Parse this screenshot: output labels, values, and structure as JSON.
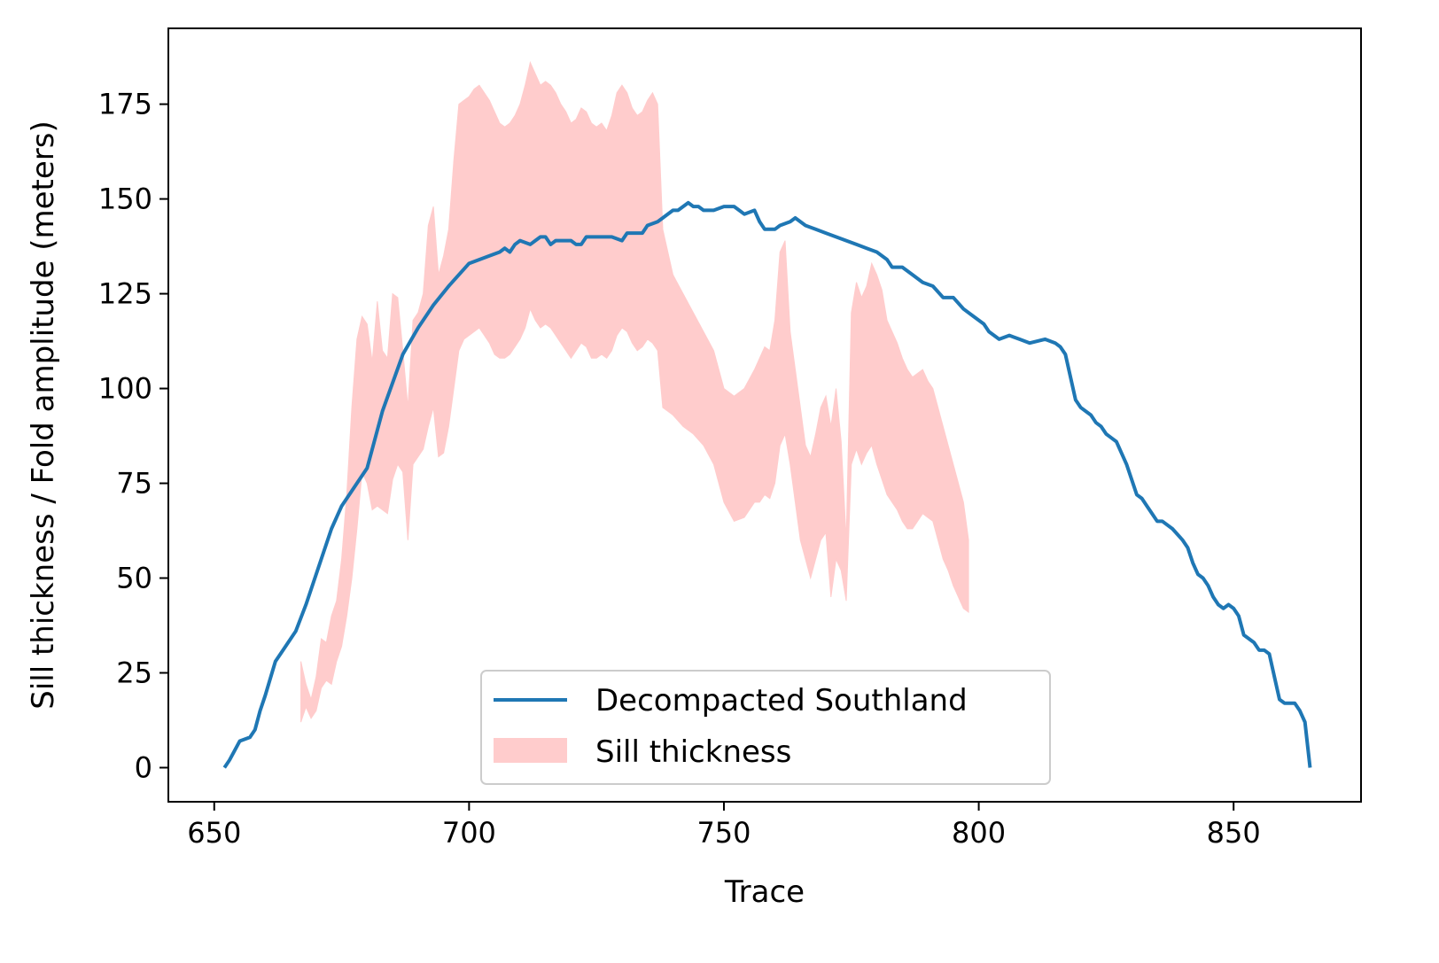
{
  "chart_data": {
    "type": "line",
    "xlabel": "Trace",
    "ylabel": "Sill thickness / Fold amplitude (meters)",
    "xlim": [
      641,
      875
    ],
    "ylim": [
      -9,
      195
    ],
    "xticks": [
      650,
      700,
      750,
      800,
      850
    ],
    "yticks": [
      0,
      25,
      50,
      75,
      100,
      125,
      150,
      175
    ],
    "grid": false,
    "legend_position": "lower-center",
    "line_series": {
      "name": "Decompacted Southland",
      "color": "#1f77b4",
      "points": [
        [
          652,
          0
        ],
        [
          653,
          2
        ],
        [
          655,
          7
        ],
        [
          657,
          8
        ],
        [
          658,
          10
        ],
        [
          659,
          15
        ],
        [
          660,
          19
        ],
        [
          662,
          28
        ],
        [
          663,
          30
        ],
        [
          665,
          34
        ],
        [
          666,
          36
        ],
        [
          668,
          43
        ],
        [
          671,
          55
        ],
        [
          673,
          63
        ],
        [
          675,
          69
        ],
        [
          678,
          75
        ],
        [
          680,
          79
        ],
        [
          683,
          94
        ],
        [
          687,
          109
        ],
        [
          690,
          116
        ],
        [
          693,
          122
        ],
        [
          696,
          127
        ],
        [
          700,
          133
        ],
        [
          704,
          135
        ],
        [
          706,
          136
        ],
        [
          707,
          137
        ],
        [
          708,
          136
        ],
        [
          709,
          138
        ],
        [
          710,
          139
        ],
        [
          712,
          138
        ],
        [
          713,
          139
        ],
        [
          714,
          140
        ],
        [
          715,
          140
        ],
        [
          716,
          138
        ],
        [
          717,
          139
        ],
        [
          718,
          139
        ],
        [
          719,
          139
        ],
        [
          720,
          139
        ],
        [
          721,
          138
        ],
        [
          722,
          138
        ],
        [
          723,
          140
        ],
        [
          725,
          140
        ],
        [
          728,
          140
        ],
        [
          730,
          139
        ],
        [
          731,
          141
        ],
        [
          732,
          141
        ],
        [
          734,
          141
        ],
        [
          735,
          143
        ],
        [
          737,
          144
        ],
        [
          738,
          145
        ],
        [
          740,
          147
        ],
        [
          741,
          147
        ],
        [
          742,
          148
        ],
        [
          743,
          149
        ],
        [
          744,
          148
        ],
        [
          745,
          148
        ],
        [
          746,
          147
        ],
        [
          748,
          147
        ],
        [
          750,
          148
        ],
        [
          752,
          148
        ],
        [
          753,
          147
        ],
        [
          754,
          146
        ],
        [
          756,
          147
        ],
        [
          757,
          144
        ],
        [
          758,
          142
        ],
        [
          760,
          142
        ],
        [
          761,
          143
        ],
        [
          763,
          144
        ],
        [
          764,
          145
        ],
        [
          766,
          143
        ],
        [
          768,
          142
        ],
        [
          770,
          141
        ],
        [
          772,
          140
        ],
        [
          774,
          139
        ],
        [
          776,
          138
        ],
        [
          778,
          137
        ],
        [
          780,
          136
        ],
        [
          781,
          135
        ],
        [
          782,
          134
        ],
        [
          783,
          132
        ],
        [
          785,
          132
        ],
        [
          787,
          130
        ],
        [
          789,
          128
        ],
        [
          791,
          127
        ],
        [
          793,
          124
        ],
        [
          795,
          124
        ],
        [
          797,
          121
        ],
        [
          799,
          119
        ],
        [
          801,
          117
        ],
        [
          802,
          115
        ],
        [
          804,
          113
        ],
        [
          806,
          114
        ],
        [
          808,
          113
        ],
        [
          810,
          112
        ],
        [
          813,
          113
        ],
        [
          815,
          112
        ],
        [
          816,
          111
        ],
        [
          817,
          109
        ],
        [
          818,
          103
        ],
        [
          819,
          97
        ],
        [
          820,
          95
        ],
        [
          821,
          94
        ],
        [
          822,
          93
        ],
        [
          823,
          91
        ],
        [
          824,
          90
        ],
        [
          825,
          88
        ],
        [
          826,
          87
        ],
        [
          827,
          86
        ],
        [
          828,
          83
        ],
        [
          829,
          80
        ],
        [
          830,
          76
        ],
        [
          831,
          72
        ],
        [
          832,
          71
        ],
        [
          833,
          69
        ],
        [
          834,
          67
        ],
        [
          835,
          65
        ],
        [
          836,
          65
        ],
        [
          838,
          63
        ],
        [
          840,
          60
        ],
        [
          841,
          58
        ],
        [
          842,
          54
        ],
        [
          843,
          51
        ],
        [
          844,
          50
        ],
        [
          845,
          48
        ],
        [
          846,
          45
        ],
        [
          847,
          43
        ],
        [
          848,
          42
        ],
        [
          849,
          43
        ],
        [
          850,
          42
        ],
        [
          851,
          40
        ],
        [
          852,
          35
        ],
        [
          853,
          34
        ],
        [
          854,
          33
        ],
        [
          855,
          31
        ],
        [
          856,
          31
        ],
        [
          857,
          30
        ],
        [
          858,
          24
        ],
        [
          859,
          18
        ],
        [
          860,
          17
        ],
        [
          861,
          17
        ],
        [
          862,
          17
        ],
        [
          863,
          15
        ],
        [
          864,
          12
        ],
        [
          865,
          0
        ]
      ]
    },
    "band_series": {
      "name": "Sill thickness",
      "color": "#ffcccc",
      "points": [
        [
          667,
          28,
          12
        ],
        [
          668,
          22,
          16
        ],
        [
          669,
          18,
          13
        ],
        [
          670,
          24,
          15
        ],
        [
          671,
          34,
          21
        ],
        [
          672,
          33,
          23
        ],
        [
          673,
          40,
          22
        ],
        [
          674,
          44,
          28
        ],
        [
          675,
          55,
          32
        ],
        [
          676,
          72,
          40
        ],
        [
          677,
          95,
          50
        ],
        [
          678,
          113,
          63
        ],
        [
          679,
          119,
          78
        ],
        [
          680,
          117,
          75
        ],
        [
          681,
          107,
          68
        ],
        [
          682,
          123,
          69
        ],
        [
          683,
          110,
          68
        ],
        [
          684,
          108,
          67
        ],
        [
          685,
          125,
          76
        ],
        [
          686,
          124,
          80
        ],
        [
          687,
          110,
          78
        ],
        [
          688,
          95,
          60
        ],
        [
          689,
          118,
          80
        ],
        [
          690,
          120,
          82
        ],
        [
          691,
          125,
          84
        ],
        [
          692,
          143,
          90
        ],
        [
          693,
          148,
          95
        ],
        [
          694,
          130,
          82
        ],
        [
          695,
          135,
          83
        ],
        [
          696,
          142,
          90
        ],
        [
          697,
          160,
          100
        ],
        [
          698,
          175,
          110
        ],
        [
          699,
          176,
          113
        ],
        [
          700,
          177,
          114
        ],
        [
          701,
          179,
          115
        ],
        [
          702,
          180,
          116
        ],
        [
          703,
          178,
          114
        ],
        [
          704,
          176,
          112
        ],
        [
          705,
          173,
          109
        ],
        [
          706,
          170,
          108
        ],
        [
          707,
          169,
          108
        ],
        [
          708,
          170,
          109
        ],
        [
          709,
          172,
          111
        ],
        [
          710,
          175,
          113
        ],
        [
          711,
          180,
          116
        ],
        [
          712,
          186,
          121
        ],
        [
          713,
          183,
          118
        ],
        [
          714,
          180,
          116
        ],
        [
          715,
          181,
          117
        ],
        [
          716,
          180,
          116
        ],
        [
          717,
          178,
          114
        ],
        [
          718,
          175,
          112
        ],
        [
          719,
          173,
          110
        ],
        [
          720,
          170,
          108
        ],
        [
          721,
          171,
          110
        ],
        [
          722,
          174,
          112
        ],
        [
          723,
          173,
          111
        ],
        [
          724,
          170,
          108
        ],
        [
          725,
          169,
          108
        ],
        [
          726,
          170,
          109
        ],
        [
          727,
          168,
          108
        ],
        [
          728,
          172,
          110
        ],
        [
          729,
          178,
          114
        ],
        [
          730,
          180,
          116
        ],
        [
          731,
          178,
          115
        ],
        [
          732,
          174,
          112
        ],
        [
          733,
          172,
          110
        ],
        [
          734,
          173,
          111
        ],
        [
          735,
          176,
          113
        ],
        [
          736,
          178,
          112
        ],
        [
          737,
          175,
          110
        ],
        [
          738,
          142,
          95
        ],
        [
          740,
          130,
          93
        ],
        [
          742,
          125,
          90
        ],
        [
          744,
          120,
          88
        ],
        [
          746,
          115,
          85
        ],
        [
          748,
          110,
          80
        ],
        [
          750,
          100,
          70
        ],
        [
          752,
          98,
          65
        ],
        [
          754,
          100,
          66
        ],
        [
          756,
          105,
          70
        ],
        [
          757,
          108,
          70
        ],
        [
          758,
          111,
          72
        ],
        [
          759,
          110,
          71
        ],
        [
          760,
          118,
          75
        ],
        [
          761,
          136,
          85
        ],
        [
          762,
          139,
          88
        ],
        [
          763,
          115,
          80
        ],
        [
          764,
          105,
          70
        ],
        [
          765,
          95,
          60
        ],
        [
          766,
          85,
          55
        ],
        [
          767,
          82,
          50
        ],
        [
          768,
          88,
          55
        ],
        [
          769,
          95,
          60
        ],
        [
          770,
          98,
          62
        ],
        [
          771,
          90,
          45
        ],
        [
          772,
          100,
          55
        ],
        [
          773,
          86,
          52
        ],
        [
          774,
          60,
          44
        ],
        [
          775,
          120,
          80
        ],
        [
          776,
          128,
          84
        ],
        [
          777,
          124,
          80
        ],
        [
          778,
          127,
          83
        ],
        [
          779,
          133,
          85
        ],
        [
          780,
          130,
          80
        ],
        [
          781,
          126,
          76
        ],
        [
          782,
          118,
          72
        ],
        [
          783,
          115,
          70
        ],
        [
          784,
          112,
          68
        ],
        [
          785,
          108,
          65
        ],
        [
          786,
          105,
          63
        ],
        [
          787,
          103,
          63
        ],
        [
          788,
          104,
          65
        ],
        [
          789,
          105,
          67
        ],
        [
          790,
          102,
          66
        ],
        [
          791,
          100,
          65
        ],
        [
          792,
          95,
          60
        ],
        [
          793,
          90,
          55
        ],
        [
          794,
          85,
          52
        ],
        [
          795,
          80,
          48
        ],
        [
          796,
          75,
          45
        ],
        [
          797,
          70,
          42
        ],
        [
          798,
          60,
          41
        ]
      ]
    }
  },
  "legend": {
    "items": [
      {
        "label": "Decompacted Southland",
        "kind": "line",
        "color": "#1f77b4"
      },
      {
        "label": "Sill thickness",
        "kind": "patch",
        "color": "#ffcccc"
      }
    ]
  }
}
